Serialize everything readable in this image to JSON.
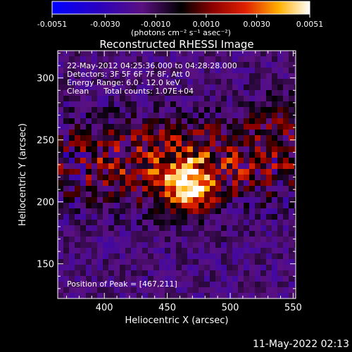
{
  "chart_data": {
    "type": "heatmap",
    "title": "Reconstructed RHESSI Image",
    "xlabel": "Heliocentric X (arcsec)",
    "ylabel": "Heliocentric Y (arcsec)",
    "xlim": [
      363,
      552
    ],
    "ylim": [
      122,
      322
    ],
    "x_ticks": [
      400,
      450,
      500,
      550
    ],
    "y_ticks": [
      150,
      200,
      250,
      300
    ],
    "colorbar": {
      "min": -0.0051,
      "max": 0.0051,
      "ticks": [
        "-0.0051",
        "-0.0030",
        "-0.0010",
        "0.0010",
        "0.0030",
        "0.0051"
      ],
      "tick_values": [
        -0.0051,
        -0.003,
        -0.001,
        0.001,
        0.003,
        0.0051
      ],
      "units": "(photons cm⁻² s⁻¹ asec⁻²)"
    },
    "annotations": [
      "22-May-2012 04:25:36.000 to 04:28:28.000",
      "Detectors: 3F 5F 6F 7F 8F, Att 0",
      "Energy Range: 6.0 - 12.0 keV",
      "Clean      Total counts: 1.07E+04"
    ],
    "peak": {
      "x": 467,
      "y": 211,
      "label": "Position of Peak = [467,211]"
    },
    "timestamp": "11-May-2022 02:13"
  }
}
